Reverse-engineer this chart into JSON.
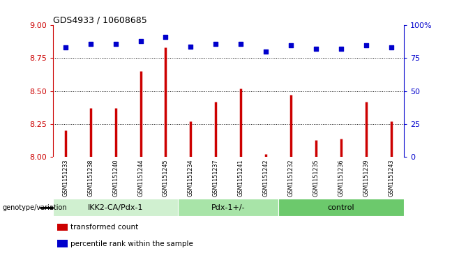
{
  "title": "GDS4933 / 10608685",
  "samples": [
    "GSM1151233",
    "GSM1151238",
    "GSM1151240",
    "GSM1151244",
    "GSM1151245",
    "GSM1151234",
    "GSM1151237",
    "GSM1151241",
    "GSM1151242",
    "GSM1151232",
    "GSM1151235",
    "GSM1151236",
    "GSM1151239",
    "GSM1151243"
  ],
  "red_values": [
    8.2,
    8.37,
    8.37,
    8.65,
    8.83,
    8.27,
    8.42,
    8.52,
    8.02,
    8.47,
    8.13,
    8.14,
    8.42,
    8.27
  ],
  "blue_values": [
    83,
    86,
    86,
    88,
    91,
    84,
    86,
    86,
    80,
    85,
    82,
    82,
    85,
    83
  ],
  "groups": [
    {
      "label": "IKK2-CA/Pdx-1",
      "start": 0,
      "end": 5,
      "color": "#d0f0d0"
    },
    {
      "label": "Pdx-1+/-",
      "start": 5,
      "end": 9,
      "color": "#a8e4a8"
    },
    {
      "label": "control",
      "start": 9,
      "end": 14,
      "color": "#6cc96c"
    }
  ],
  "ylim_left": [
    8.0,
    9.0
  ],
  "ylim_right": [
    0,
    100
  ],
  "yticks_left": [
    8.0,
    8.25,
    8.5,
    8.75,
    9.0
  ],
  "yticks_right": [
    0,
    25,
    50,
    75,
    100
  ],
  "bar_color": "#cc0000",
  "dot_color": "#0000cc",
  "legend_items": [
    {
      "color": "#cc0000",
      "label": "transformed count"
    },
    {
      "color": "#0000cc",
      "label": "percentile rank within the sample"
    }
  ],
  "xlabel_left": "genotype/variation",
  "tick_area_color": "#d0d0d0",
  "background_color": "#ffffff"
}
